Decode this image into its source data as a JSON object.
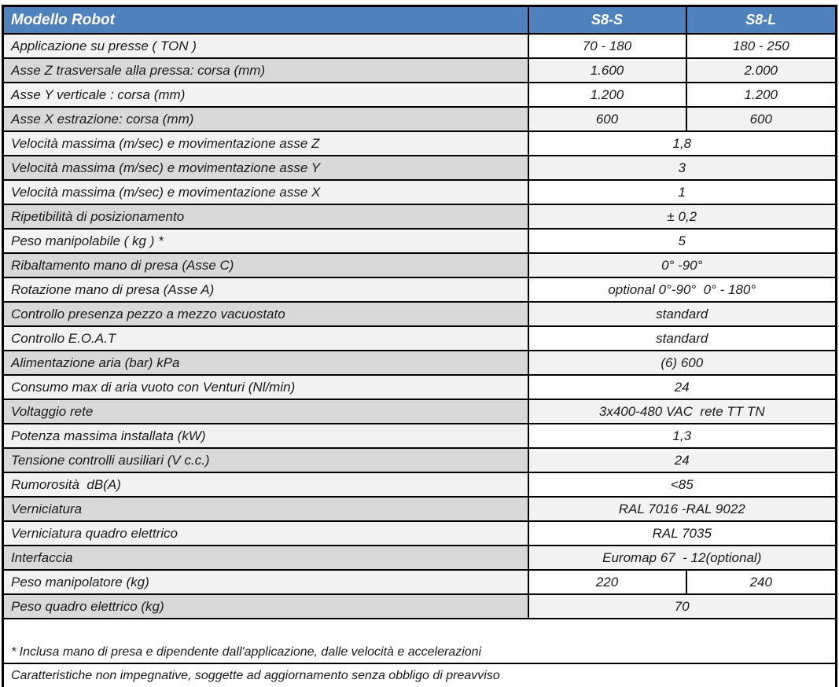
{
  "header": {
    "title": "Modello Robot",
    "columns": [
      "S8-S",
      "S8-L"
    ]
  },
  "rows": [
    {
      "label": "Applicazione su presse ( TON )",
      "values": [
        "70 - 180",
        "180 - 250"
      ]
    },
    {
      "label": "Asse Z trasversale alla pressa: corsa (mm)",
      "values": [
        "1.600",
        "2.000"
      ]
    },
    {
      "label": "Asse Y verticale : corsa (mm)",
      "values": [
        "1.200",
        "1.200"
      ]
    },
    {
      "label": "Asse X estrazione: corsa (mm)",
      "values": [
        "600",
        "600"
      ]
    },
    {
      "label": "Velocità massima (m/sec) e movimentazione asse Z",
      "value": "1,8"
    },
    {
      "label": "Velocità massima (m/sec) e movimentazione asse Y",
      "value": "3"
    },
    {
      "label": "Velocità massima (m/sec) e movimentazione asse X",
      "value": "1"
    },
    {
      "label": "Ripetibilità di posizionamento",
      "value": "± 0,2"
    },
    {
      "label": "Peso manipolabile ( kg ) *",
      "value": "5"
    },
    {
      "label": "Ribaltamento mano di presa (Asse C)",
      "value": "0° -90°"
    },
    {
      "label": "Rotazione mano di presa (Asse A)",
      "value": "optional 0°-90°  0° - 180°"
    },
    {
      "label": "Controllo presenza pezzo a mezzo vacuostato",
      "value": "standard"
    },
    {
      "label": "Controllo E.O.A.T",
      "value": "standard"
    },
    {
      "label": "Alimentazione aria (bar) kPa",
      "value": "(6) 600"
    },
    {
      "label": "Consumo max di aria vuoto con Venturi (Nl/min)",
      "value": "24"
    },
    {
      "label": "Voltaggio rete",
      "value": "3x400-480 VAC  rete TT TN"
    },
    {
      "label": "Potenza massima installata (kW)",
      "value": "1,3"
    },
    {
      "label": "Tensione controlli ausiliari (V c.c.)",
      "value": "24"
    },
    {
      "label": "Rumorosità  dB(A)",
      "value": "<85"
    },
    {
      "label": "Verniciatura",
      "value": "RAL 7016 -RAL 9022"
    },
    {
      "label": "Verniciatura quadro elettrico",
      "value": "RAL 7035"
    },
    {
      "label": "Interfaccia",
      "value": "Euromap 67  - 12(optional)"
    },
    {
      "label": "Peso manipolatore (kg)",
      "values": [
        "220",
        "240"
      ]
    },
    {
      "label": "Peso quadro elettrico (kg)",
      "value": "70"
    }
  ],
  "footnotes": [
    "* Inclusa mano di presa e dipendente dall'applicazione, dalle velocità e accelerazioni",
    "Caratteristiche non impegnative, soggette ad aggiornamento senza obbligo di preavviso"
  ],
  "colors": {
    "header_bg": "#4f81bd",
    "header_text": "#ffffff",
    "label_light": "#f2f2f2",
    "label_dark": "#d9d9d9",
    "value_light": "#ffffff",
    "value_dark": "#f2f2f2",
    "border": "#000000",
    "text": "#1a1a1a"
  }
}
